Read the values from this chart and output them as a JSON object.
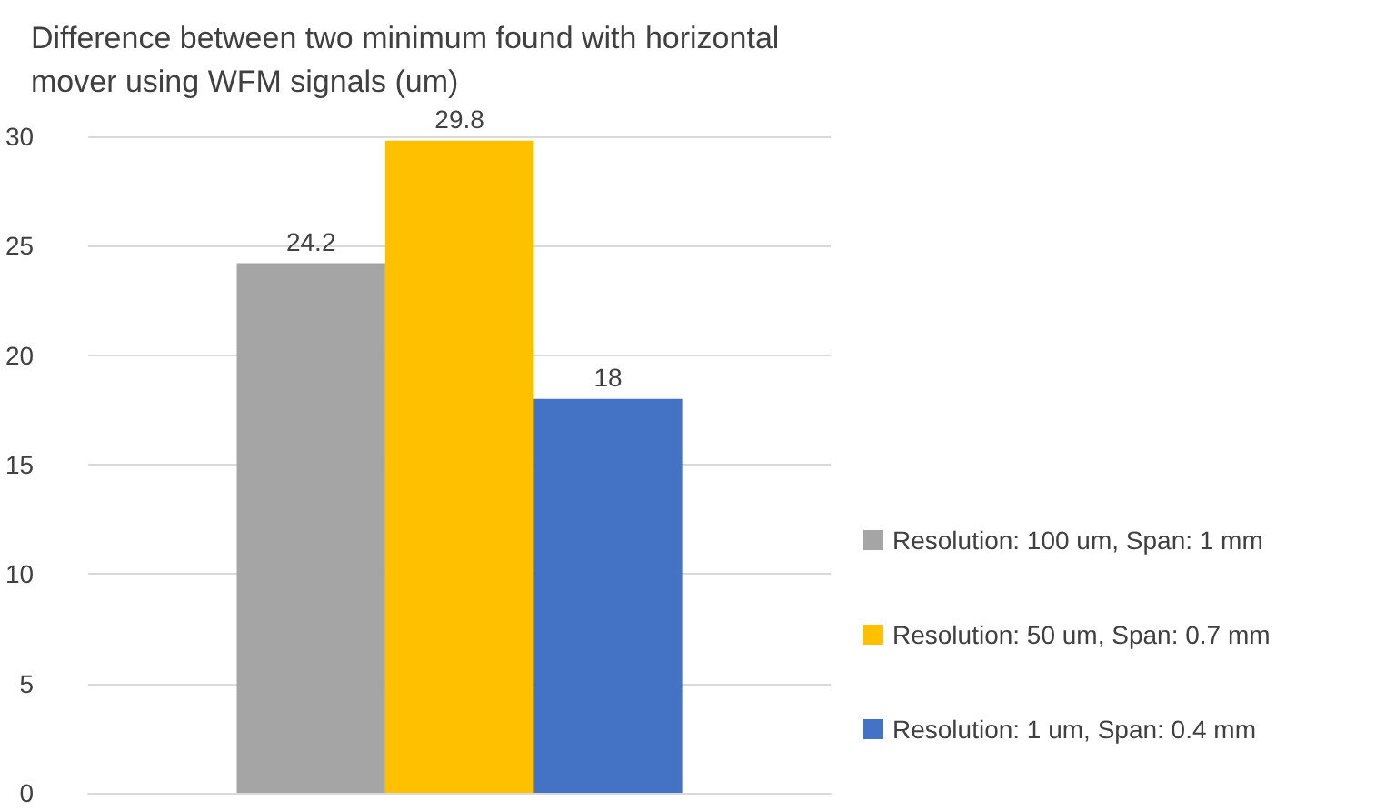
{
  "chart_data": {
    "type": "bar",
    "title": "Difference between two minimum found with horizontal mover using WFM signals (um)",
    "categories": [
      null
    ],
    "series": [
      {
        "name": "Resolution: 100 um, Span: 1 mm",
        "color": "#a5a5a5",
        "values": [
          24.2
        ]
      },
      {
        "name": "Resolution: 50 um, Span: 0.7 mm",
        "color": "#ffc000",
        "values": [
          29.8
        ]
      },
      {
        "name": "Resolution: 1 um, Span: 0.4 mm",
        "color": "#4472c4",
        "values": [
          18
        ]
      }
    ],
    "ylim": [
      0,
      30
    ],
    "yticks": [
      0,
      5,
      10,
      15,
      20,
      25,
      30
    ],
    "grid": "y",
    "legend": "right",
    "data_labels": true
  }
}
